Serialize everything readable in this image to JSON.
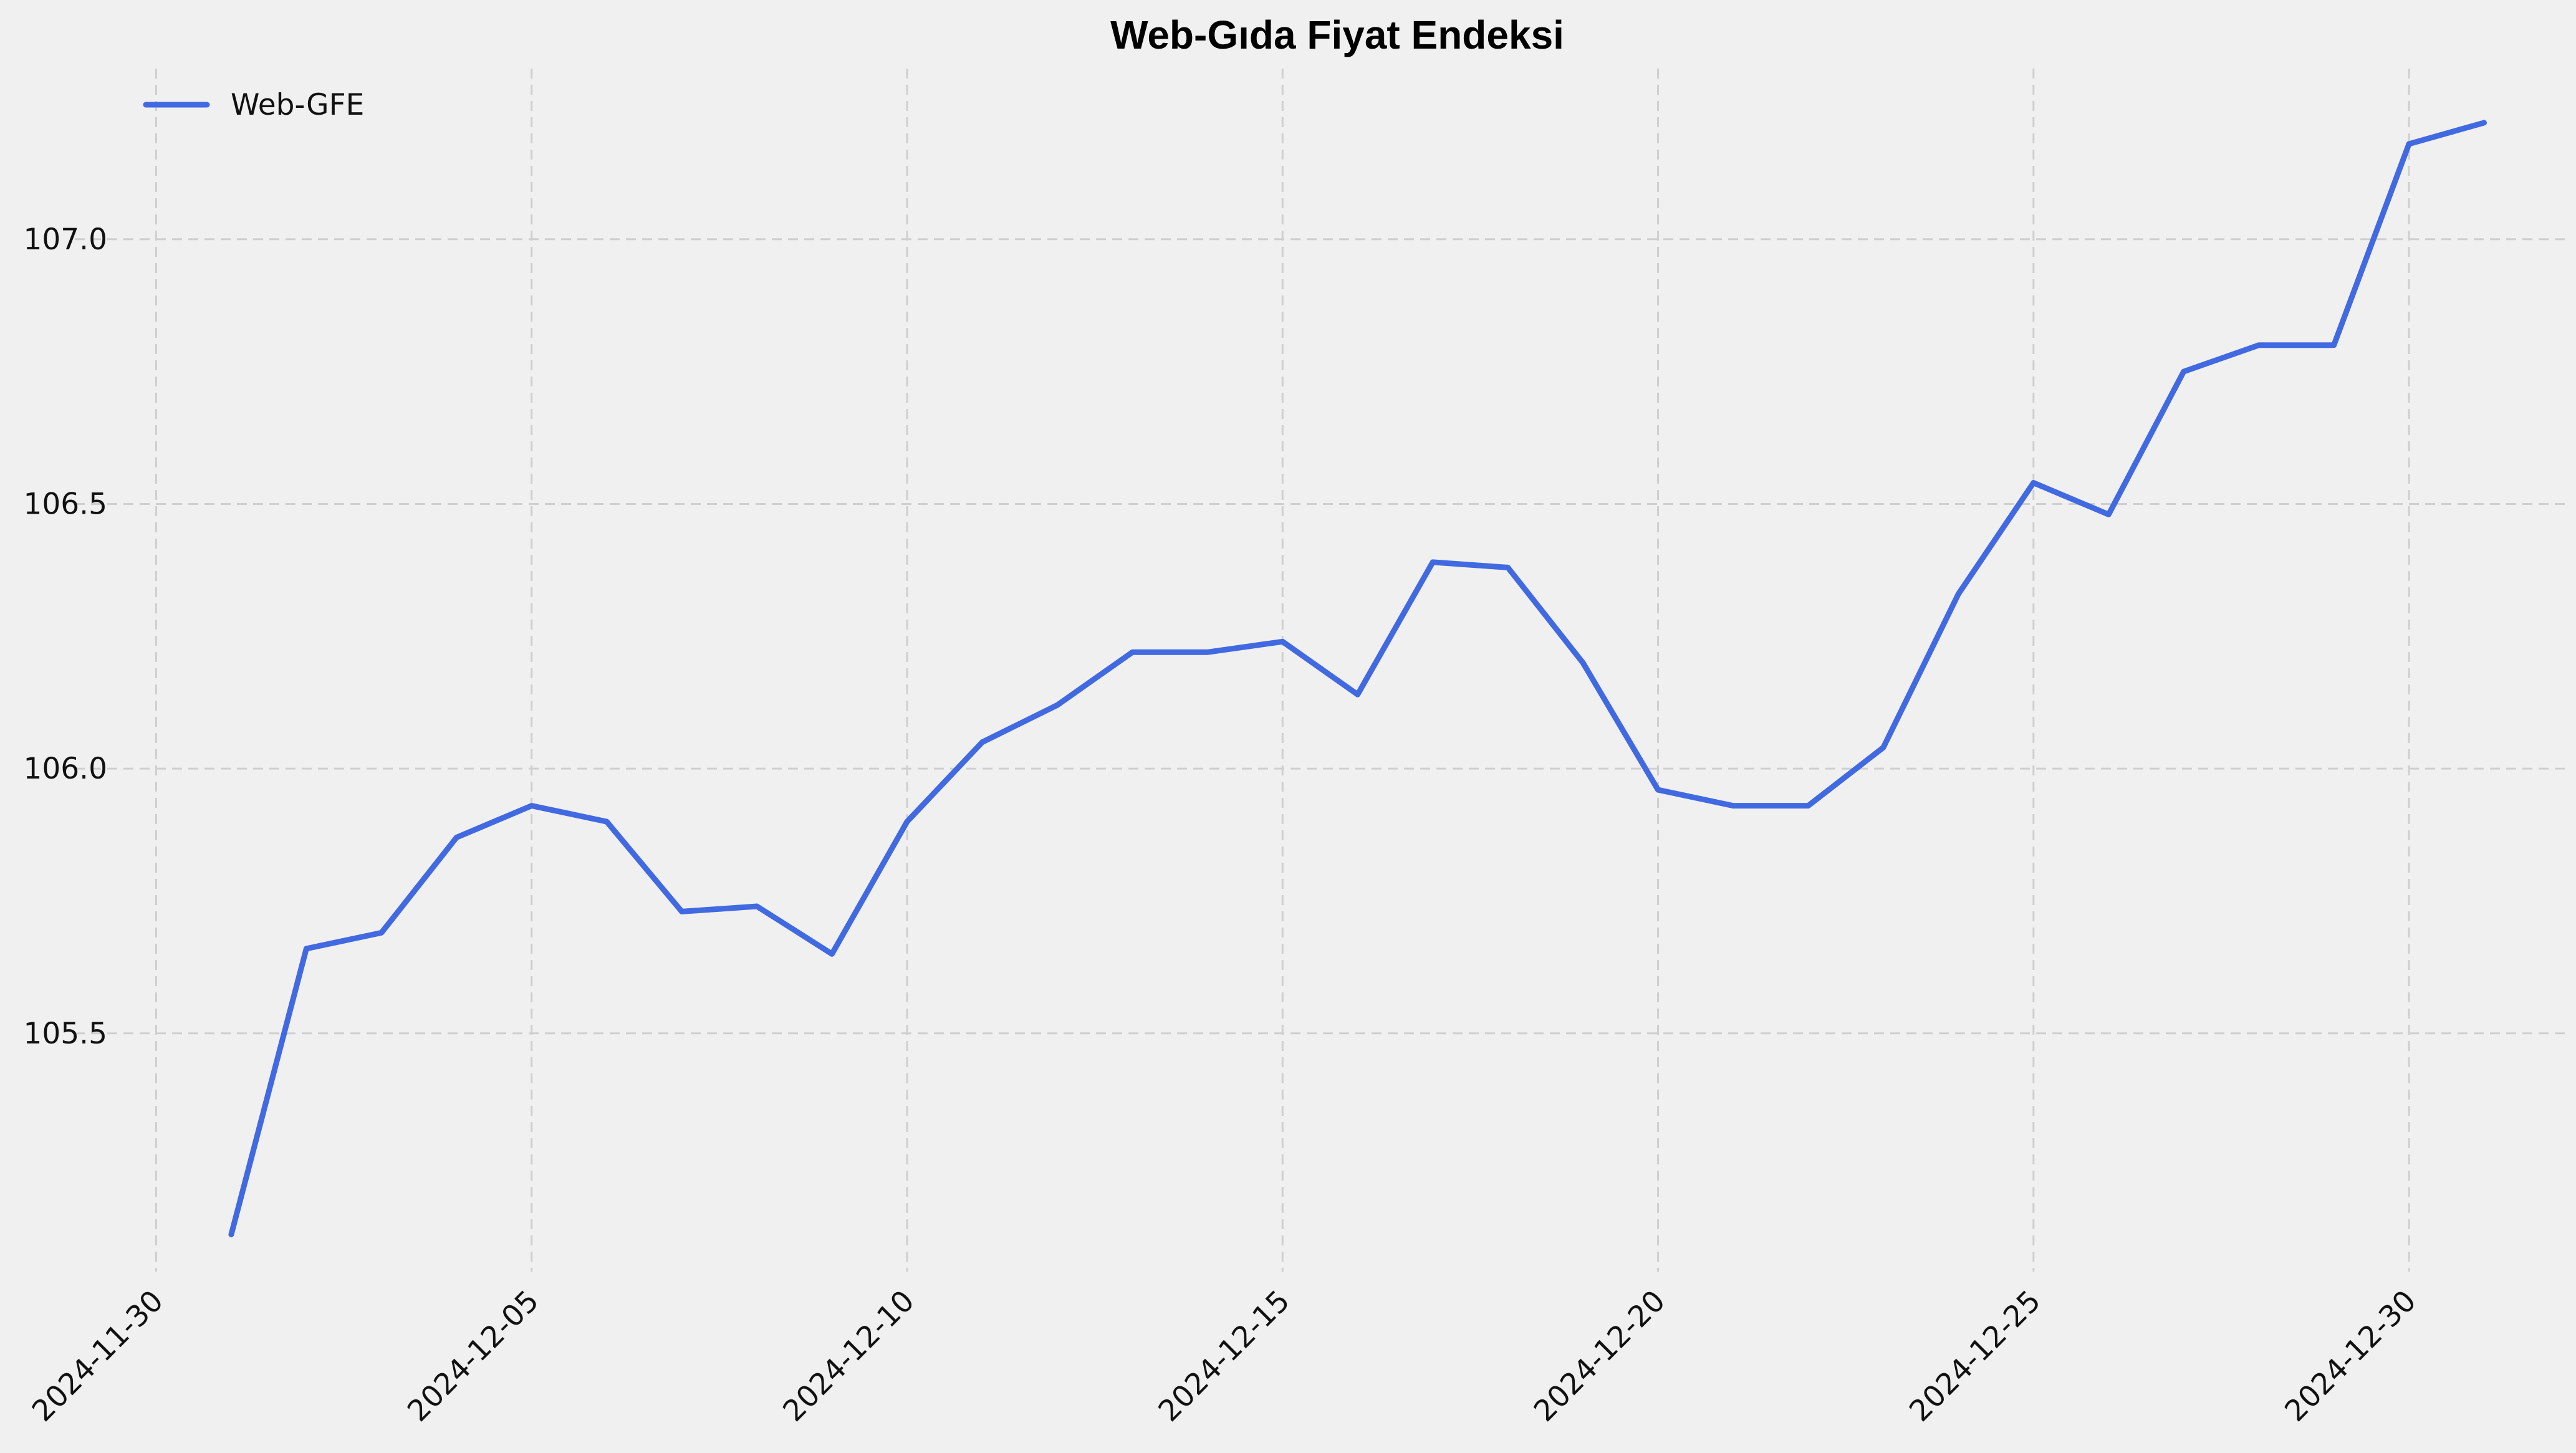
{
  "colors": {
    "background": "#f0f0f0",
    "series": "#4169e1",
    "grid": "#cfcfcf"
  },
  "chart_data": {
    "type": "line",
    "title": "Web-Gıda Fiyat Endeksi",
    "xlabel": "",
    "ylabel": "",
    "grid": true,
    "legend_position": "top-left",
    "x_ticks": [
      "2024-11-30",
      "2024-12-05",
      "2024-12-10",
      "2024-12-15",
      "2024-12-20",
      "2024-12-25",
      "2024-12-30"
    ],
    "y_ticks": [
      "105.5",
      "106.0",
      "106.5",
      "107.0"
    ],
    "xlim": [
      "2024-11-29",
      "2025-01-01"
    ],
    "ylim": [
      105.05,
      107.32
    ],
    "series": [
      {
        "name": "Web-GFE",
        "color": "#4169e1",
        "x": [
          "2024-12-01",
          "2024-12-02",
          "2024-12-03",
          "2024-12-04",
          "2024-12-05",
          "2024-12-06",
          "2024-12-07",
          "2024-12-08",
          "2024-12-09",
          "2024-12-10",
          "2024-12-11",
          "2024-12-12",
          "2024-12-13",
          "2024-12-14",
          "2024-12-15",
          "2024-12-16",
          "2024-12-17",
          "2024-12-18",
          "2024-12-19",
          "2024-12-20",
          "2024-12-21",
          "2024-12-22",
          "2024-12-23",
          "2024-12-24",
          "2024-12-25",
          "2024-12-26",
          "2024-12-27",
          "2024-12-28",
          "2024-12-29",
          "2024-12-30",
          "2024-12-31"
        ],
        "values": [
          105.12,
          105.66,
          105.69,
          105.87,
          105.93,
          105.9,
          105.73,
          105.74,
          105.65,
          105.9,
          106.05,
          106.12,
          106.22,
          106.22,
          106.24,
          106.14,
          106.39,
          106.38,
          106.2,
          105.96,
          105.93,
          105.93,
          106.04,
          106.33,
          106.54,
          106.48,
          106.75,
          106.8,
          106.8,
          107.18,
          107.22
        ]
      }
    ]
  }
}
